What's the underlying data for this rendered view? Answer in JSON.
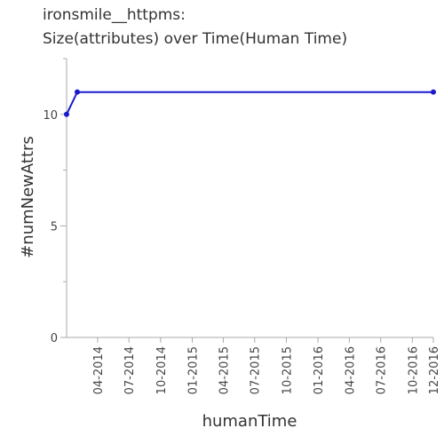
{
  "chart_data": {
    "type": "line",
    "title": "ironsmile__httpms:",
    "subtitle": "Size(attributes) over Time(Human Time)",
    "xlabel": "humanTime",
    "ylabel": "#numNewAttrs",
    "x_tick_labels": [
      "04-2014",
      "07-2014",
      "10-2014",
      "01-2015",
      "04-2015",
      "07-2015",
      "10-2015",
      "01-2016",
      "04-2016",
      "07-2016",
      "10-2016",
      "12-2016"
    ],
    "y_tick_labels": [
      "0",
      "5",
      "10"
    ],
    "ylim": [
      0,
      12.5
    ],
    "y_minor_ticks": [
      2.5,
      7.5,
      12.5
    ],
    "grid": false,
    "series": [
      {
        "points": [
          {
            "x": "2014-01-01",
            "y": 10
          },
          {
            "x": "2014-02-01",
            "y": 11
          },
          {
            "x": "2016-12-01",
            "y": 11
          }
        ]
      }
    ],
    "series_color": "#1a1acc",
    "axis_color": "#aaaaaa"
  }
}
